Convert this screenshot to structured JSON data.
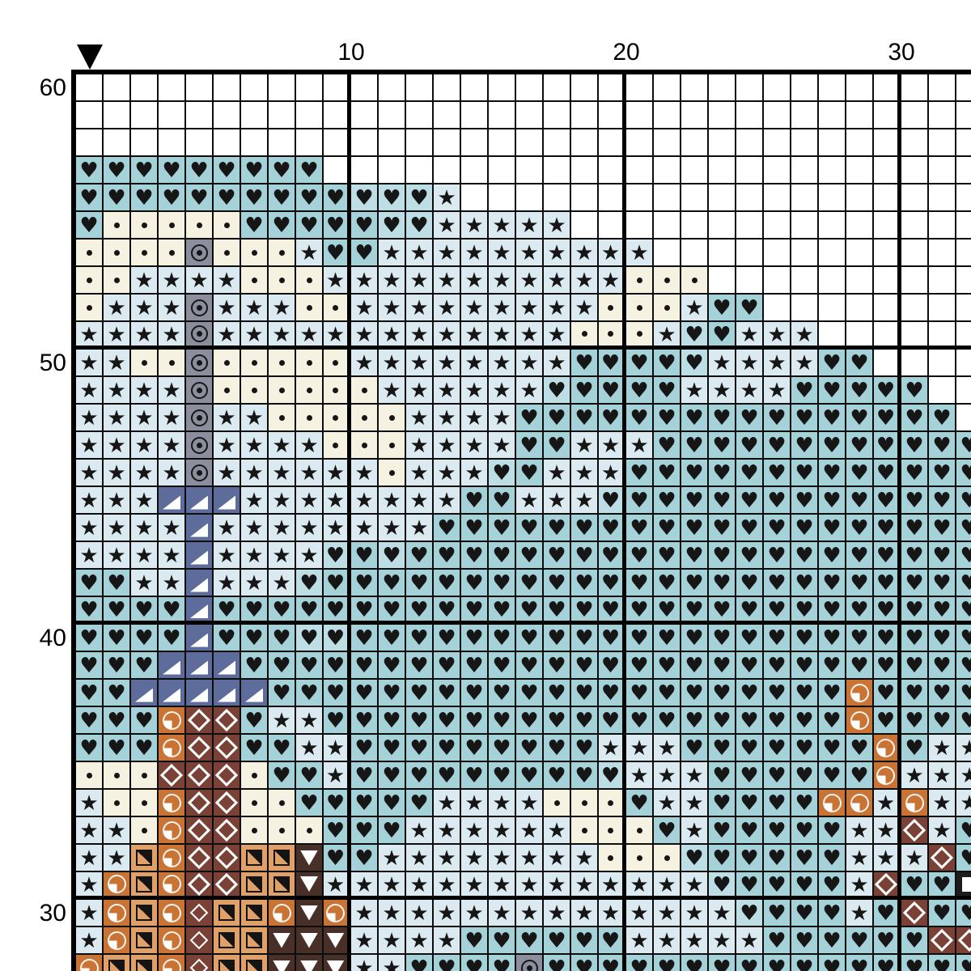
{
  "chart": {
    "type": "cross-stitch-pattern-grid",
    "marker": {
      "glyph": "▼",
      "column": 1
    },
    "top_labels": [
      {
        "text": "10",
        "col": 10
      },
      {
        "text": "20",
        "col": 20
      },
      {
        "text": "30",
        "col": 30
      }
    ],
    "left_labels": [
      {
        "text": "60",
        "row": 60
      },
      {
        "text": "50",
        "row": 50
      },
      {
        "text": "40",
        "row": 40
      },
      {
        "text": "30",
        "row": 30
      }
    ],
    "first_row": 60,
    "grid_line_color": "#0d0d0d",
    "bold_line_color": "#000000",
    "glyphs": {
      "star": "★",
      "heart": "♥"
    },
    "palette": {
      ".": {
        "bg": "#ffffff",
        "symbol": "none",
        "fg": "#161616"
      },
      "c": {
        "bg": "#f6f2e2",
        "symbol": "dot",
        "fg": "#161616"
      },
      "s": {
        "bg": "#dbeaf1",
        "symbol": "star",
        "fg": "#161616"
      },
      "m": {
        "bg": "#bddee4",
        "symbol": "heart",
        "fg": "#161616"
      },
      "H": {
        "bg": "#a5d2d8",
        "symbol": "heart",
        "fg": "#161616"
      },
      "g": {
        "bg": "#8b8f9d",
        "symbol": "bullseye",
        "fg": "#161616"
      },
      "n": {
        "bg": "#5d6c9b",
        "symbol": "triangle-corner",
        "fg": "#ffffff"
      },
      "q": {
        "bg": "#c97434",
        "symbol": "quarter-circle",
        "fg": "#ffffff"
      },
      "z": {
        "bg": "#dfa069",
        "symbol": "half-square",
        "fg": "#141414"
      },
      "b": {
        "bg": "#7a4237",
        "symbol": "diamond",
        "fg": "#ffffff"
      },
      "o": {
        "bg": "#7a4237",
        "symbol": "diamond-small",
        "fg": "#ffffff"
      },
      "v": {
        "bg": "#483029",
        "symbol": "triangle-down",
        "fg": "#ffffff"
      },
      "W": {
        "bg": "#1c1c1c",
        "symbol": "square",
        "fg": "#ffffff"
      }
    },
    "rows": [
      {
        "row": 60,
        "cells": "................................."
      },
      {
        "row": 59,
        "cells": "................................."
      },
      {
        "row": 58,
        "cells": "................................."
      },
      {
        "row": 57,
        "cells": "HHHHHHHHH........................"
      },
      {
        "row": 56,
        "cells": "HHHHHHHHHHmmms..................."
      },
      {
        "row": 55,
        "cells": "HcccccHHHHHmmsssss..............."
      },
      {
        "row": 54,
        "cells": "ccccgcccsHHssssssssss............"
      },
      {
        "row": 53,
        "cells": "ccsssscccsssssssssssccc.........."
      },
      {
        "row": 52,
        "cells": "csssgsssccssssssssscccsHH........"
      },
      {
        "row": 51,
        "cells": "ssssgssssssssssssscccsmHsss......"
      },
      {
        "row": 50,
        "cells": "ssccgcccccssssssssHHHHmssssHH...."
      },
      {
        "row": 49,
        "cells": "ssssgccccccssssssmHHHHssssHHHHH.."
      },
      {
        "row": 48,
        "cells": "ssssgsscccccssssHHHHHHHHHHHHHHHH."
      },
      {
        "row": 47,
        "cells": "ssssgsssscccssssHHsssHHHHHHHHHHHH"
      },
      {
        "row": 46,
        "cells": "ssssgsssssscsssmHsssHHHHHHHHHHHHH"
      },
      {
        "row": 45,
        "cells": "sssnnnssssssssHHsssmHHHHHHHHHHHHH"
      },
      {
        "row": 44,
        "cells": "ssssnssssssssHHHHHHHHHHHHHHHHHHHH"
      },
      {
        "row": 43,
        "cells": "ssssnssssmHmHHHHHHHHHHHHHHHHHHHHH"
      },
      {
        "row": 42,
        "cells": "HHssnsssmHHHHHHHHHHHHHHHHHHHHHHHH"
      },
      {
        "row": 41,
        "cells": "HHHHnHHHHHHHHHHHHHHHHHHHHHHHHHHHH"
      },
      {
        "row": 40,
        "cells": "HHHHnHHHmmHHHHHHHHHHHHHHHHHHHHHHH"
      },
      {
        "row": 39,
        "cells": "HHHnnnHHHHHHHHHHHHHHHHHHHHHHHHHHH"
      },
      {
        "row": 38,
        "cells": "HHnnnnnHHHHHHHHHHHHHHHHHHHHHqHHHH"
      },
      {
        "row": 37,
        "cells": "HHHqbbHssHHHHHHHHHHHHHHHHHHHqHHHH"
      },
      {
        "row": 36,
        "cells": "HHHqbbHHssHHHHHHHHHsssHHHHHHHqHss"
      },
      {
        "row": 35,
        "cells": "cccbbbcHHsHHHHHHHHHmsssHHHHHHqsss"
      },
      {
        "row": 34,
        "cells": "sccqbbccHHHHHsssscccHssHHHHqqsqss"
      },
      {
        "row": 33,
        "cells": "sscqbbcccHHHsssssscccHsHHHHHssbsH"
      },
      {
        "row": 32,
        "cells": "sszqbbzzvHHsssssssscccmHHHHHsssbH"
      },
      {
        "row": 31,
        "cells": "sqzqbbzzvssssssssssssssmHHHHsbHHW"
      },
      {
        "row": 30,
        "cells": "sqzqozzqvqssssssssssssssmHHHsHbHH"
      },
      {
        "row": 29,
        "cells": "sqzqozzvvvssssHHHHHHsssssHHHHHHbb"
      },
      {
        "row": 28,
        "cells": "qzzqozzvvvssHHHHgHHHHHHHHHHHHHHHH"
      }
    ]
  }
}
